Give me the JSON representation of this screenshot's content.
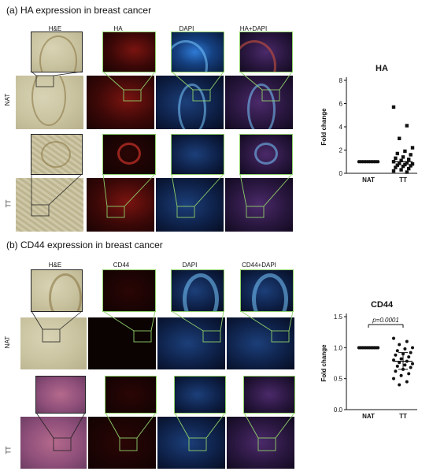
{
  "panel_a": {
    "title": "(a) HA expression in breast cancer",
    "columns": [
      "H&E",
      "HA",
      "DAPI",
      "HA+DAPI"
    ],
    "rows": [
      "NAT",
      "TT"
    ]
  },
  "panel_b": {
    "title": "(b) CD44 expression in breast cancer",
    "columns": [
      "H&E",
      "CD44",
      "DAPI",
      "CD44+DAPI"
    ],
    "rows": [
      "NAT",
      "TT"
    ]
  },
  "chart_data": [
    {
      "type": "scatter",
      "title": "HA",
      "xlabel": "",
      "ylabel": "Fold change",
      "categories": [
        "NAT",
        "TT"
      ],
      "ylim": [
        0,
        8
      ],
      "yticks": [
        "0",
        "2",
        "4",
        "6",
        "8"
      ],
      "series": [
        {
          "name": "NAT",
          "marker": "circle",
          "values": [
            1,
            1,
            1,
            1,
            1,
            1,
            1,
            1,
            1,
            1,
            1,
            1,
            1,
            1,
            1,
            1,
            1,
            1,
            1,
            1,
            1,
            1,
            1,
            1
          ]
        },
        {
          "name": "TT",
          "marker": "square",
          "values": [
            5.7,
            4.1,
            3.0,
            2.2,
            1.9,
            1.7,
            1.6,
            1.4,
            1.3,
            1.2,
            1.1,
            1.0,
            0.9,
            0.85,
            0.8,
            0.75,
            0.7,
            0.65,
            0.6,
            0.5,
            0.4,
            0.3,
            0.2,
            0.1
          ]
        }
      ]
    },
    {
      "type": "scatter",
      "title": "CD44",
      "xlabel": "",
      "ylabel": "Fold change",
      "categories": [
        "NAT",
        "TT"
      ],
      "ylim": [
        0,
        1.5
      ],
      "yticks": [
        "0.0",
        "0.5",
        "1.0",
        "1.5"
      ],
      "annotation": "p=0.0001",
      "series": [
        {
          "name": "NAT",
          "marker": "circle",
          "values": [
            1,
            1,
            1,
            1,
            1,
            1,
            1,
            1,
            1,
            1,
            1,
            1,
            1,
            1,
            1,
            1,
            1,
            1,
            1,
            1,
            1,
            1,
            1,
            1
          ]
        },
        {
          "name": "TT",
          "marker": "circle",
          "values": [
            1.15,
            1.1,
            1.05,
            1.0,
            0.98,
            0.95,
            0.92,
            0.9,
            0.88,
            0.85,
            0.82,
            0.8,
            0.78,
            0.76,
            0.74,
            0.72,
            0.7,
            0.68,
            0.65,
            0.62,
            0.58,
            0.55,
            0.5,
            0.45,
            0.4
          ]
        }
      ]
    }
  ]
}
